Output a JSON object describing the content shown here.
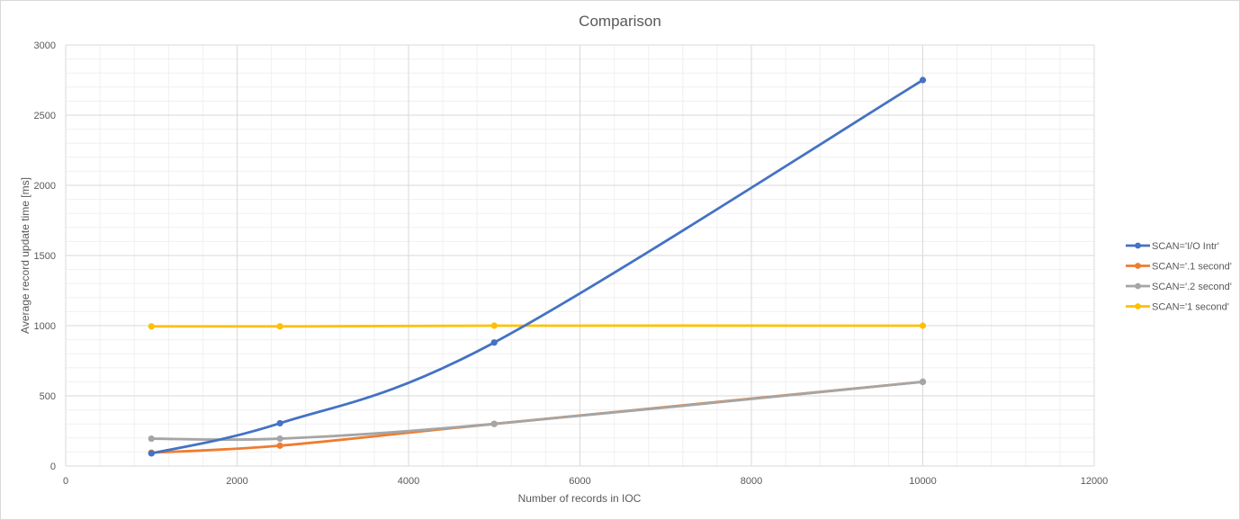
{
  "chart_data": {
    "type": "line",
    "title": "Comparison",
    "xlabel": "Number  of records in IOC",
    "ylabel": "Average record update time [ms]",
    "xlim": [
      0,
      12000
    ],
    "ylim": [
      0,
      3000
    ],
    "x_ticks": [
      0,
      2000,
      4000,
      6000,
      8000,
      10000,
      12000
    ],
    "y_ticks": [
      0,
      500,
      1000,
      1500,
      2000,
      2500,
      3000
    ],
    "grid": true,
    "legend_position": "right",
    "series": [
      {
        "name": "SCAN='I/O Intr'",
        "color": "#4472c4",
        "points": [
          [
            1000,
            90
          ],
          [
            2500,
            305
          ],
          [
            5000,
            880
          ],
          [
            10000,
            2750
          ]
        ]
      },
      {
        "name": "SCAN='.1 second'",
        "color": "#ed7d31",
        "points": [
          [
            1000,
            95
          ],
          [
            2500,
            145
          ],
          [
            5000,
            300
          ],
          [
            10000,
            600
          ]
        ]
      },
      {
        "name": "SCAN='.2 second'",
        "color": "#a5a5a5",
        "points": [
          [
            1000,
            195
          ],
          [
            2500,
            195
          ],
          [
            5000,
            300
          ],
          [
            10000,
            600
          ]
        ]
      },
      {
        "name": "SCAN='1 second'",
        "color": "#ffc000",
        "points": [
          [
            1000,
            995
          ],
          [
            2500,
            995
          ],
          [
            5000,
            1000
          ],
          [
            10000,
            1000
          ]
        ]
      }
    ]
  }
}
